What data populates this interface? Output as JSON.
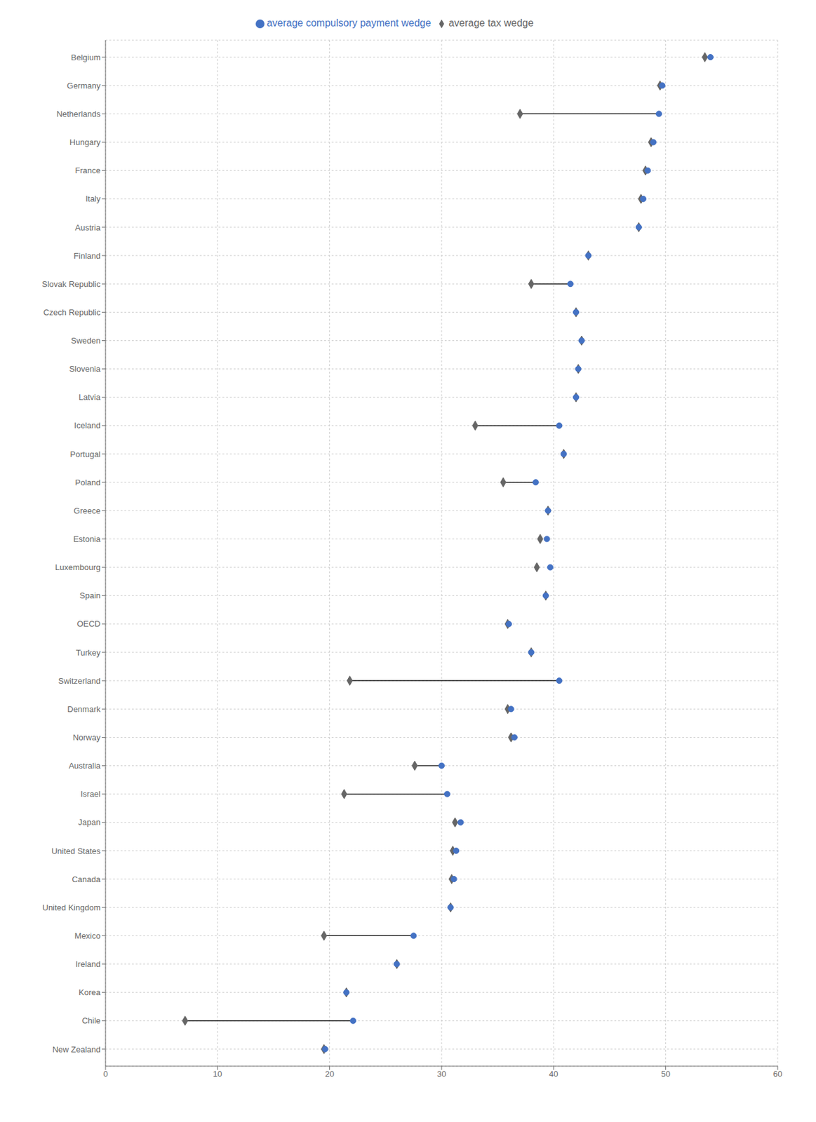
{
  "chart_data": {
    "type": "dumbbell",
    "orientation": "horizontal",
    "categories": [
      "Belgium",
      "Germany",
      "Netherlands",
      "Hungary",
      "France",
      "Italy",
      "Austria",
      "Finland",
      "Slovak Republic",
      "Czech Republic",
      "Sweden",
      "Slovenia",
      "Latvia",
      "Iceland",
      "Portugal",
      "Poland",
      "Greece",
      "Estonia",
      "Luxembourg",
      "Spain",
      "OECD",
      "Turkey",
      "Switzerland",
      "Denmark",
      "Norway",
      "Australia",
      "Israel",
      "Japan",
      "United States",
      "Canada",
      "United Kingdom",
      "Mexico",
      "Ireland",
      "Korea",
      "Chile",
      "New Zealand"
    ],
    "series": [
      {
        "name": "average compulsory payment wedge",
        "color": "#4472C4",
        "marker": "circle",
        "values": [
          54.0,
          49.7,
          49.4,
          48.9,
          48.4,
          48.0,
          47.6,
          43.1,
          41.5,
          42.0,
          42.5,
          42.2,
          42.0,
          40.5,
          40.9,
          38.4,
          39.5,
          39.4,
          39.7,
          39.3,
          36.0,
          38.0,
          40.5,
          36.2,
          36.5,
          30.0,
          30.5,
          31.7,
          31.3,
          31.1,
          30.8,
          27.5,
          26.0,
          21.5,
          22.1,
          19.6
        ]
      },
      {
        "name": "average tax wedge",
        "color": "#666666",
        "marker": "diamond",
        "values": [
          53.5,
          49.5,
          37.0,
          48.7,
          48.2,
          47.8,
          47.6,
          43.1,
          38.0,
          42.0,
          42.5,
          42.2,
          42.0,
          33.0,
          40.9,
          35.5,
          39.5,
          38.8,
          38.5,
          39.3,
          35.9,
          38.0,
          21.8,
          35.9,
          36.2,
          27.6,
          21.3,
          31.2,
          31.0,
          30.9,
          30.8,
          19.5,
          26.0,
          21.5,
          7.1,
          19.5
        ]
      }
    ],
    "xlim": [
      0,
      60
    ],
    "xticks": [
      0,
      10,
      20,
      30,
      40,
      50,
      60
    ],
    "grid": true,
    "legend": "top"
  }
}
